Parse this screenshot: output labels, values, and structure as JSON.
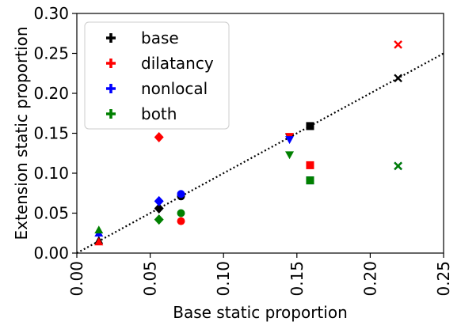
{
  "chart_data": {
    "type": "scatter",
    "xlabel": "Base static proportion",
    "ylabel": "Extension static proportion",
    "xlim": [
      0.0,
      0.25
    ],
    "ylim": [
      0.0,
      0.3
    ],
    "xticks": [
      "0.00",
      "0.05",
      "0.10",
      "0.15",
      "0.20",
      "0.25"
    ],
    "yticks": [
      "0.00",
      "0.05",
      "0.10",
      "0.15",
      "0.20",
      "0.25",
      "0.30"
    ],
    "grid": false,
    "legend_position": "top-left",
    "reference_line": {
      "style": "dotted",
      "color": "#000000",
      "x": [
        0.0,
        0.25
      ],
      "y": [
        0.0,
        0.25
      ]
    },
    "series": [
      {
        "name": "base",
        "color": "#000000",
        "points": [
          {
            "x": 0.015,
            "y": 0.016,
            "marker": "triangle-up"
          },
          {
            "x": 0.056,
            "y": 0.056,
            "marker": "diamond"
          },
          {
            "x": 0.071,
            "y": 0.071,
            "marker": "circle"
          },
          {
            "x": 0.145,
            "y": 0.145,
            "marker": "triangle-down"
          },
          {
            "x": 0.159,
            "y": 0.159,
            "marker": "square"
          },
          {
            "x": 0.219,
            "y": 0.219,
            "marker": "x"
          }
        ]
      },
      {
        "name": "dilatancy",
        "color": "#ff0000",
        "points": [
          {
            "x": 0.015,
            "y": 0.014,
            "marker": "triangle-up"
          },
          {
            "x": 0.056,
            "y": 0.145,
            "marker": "diamond"
          },
          {
            "x": 0.071,
            "y": 0.04,
            "marker": "circle"
          },
          {
            "x": 0.145,
            "y": 0.146,
            "marker": "triangle-down"
          },
          {
            "x": 0.159,
            "y": 0.11,
            "marker": "square"
          },
          {
            "x": 0.219,
            "y": 0.261,
            "marker": "x"
          }
        ]
      },
      {
        "name": "nonlocal",
        "color": "#0000ff",
        "points": [
          {
            "x": 0.015,
            "y": 0.025,
            "marker": "triangle-up"
          },
          {
            "x": 0.056,
            "y": 0.065,
            "marker": "diamond"
          },
          {
            "x": 0.071,
            "y": 0.074,
            "marker": "circle"
          },
          {
            "x": 0.145,
            "y": 0.142,
            "marker": "triangle-down"
          },
          {
            "x": 0.159,
            "y": 0.091,
            "marker": "square"
          },
          {
            "x": 0.219,
            "y": 0.109,
            "marker": "x"
          }
        ]
      },
      {
        "name": "both",
        "color": "#008000",
        "points": [
          {
            "x": 0.015,
            "y": 0.029,
            "marker": "triangle-up"
          },
          {
            "x": 0.056,
            "y": 0.042,
            "marker": "diamond"
          },
          {
            "x": 0.071,
            "y": 0.05,
            "marker": "circle"
          },
          {
            "x": 0.145,
            "y": 0.123,
            "marker": "triangle-down"
          },
          {
            "x": 0.159,
            "y": 0.091,
            "marker": "square"
          },
          {
            "x": 0.219,
            "y": 0.109,
            "marker": "x"
          }
        ]
      }
    ]
  }
}
